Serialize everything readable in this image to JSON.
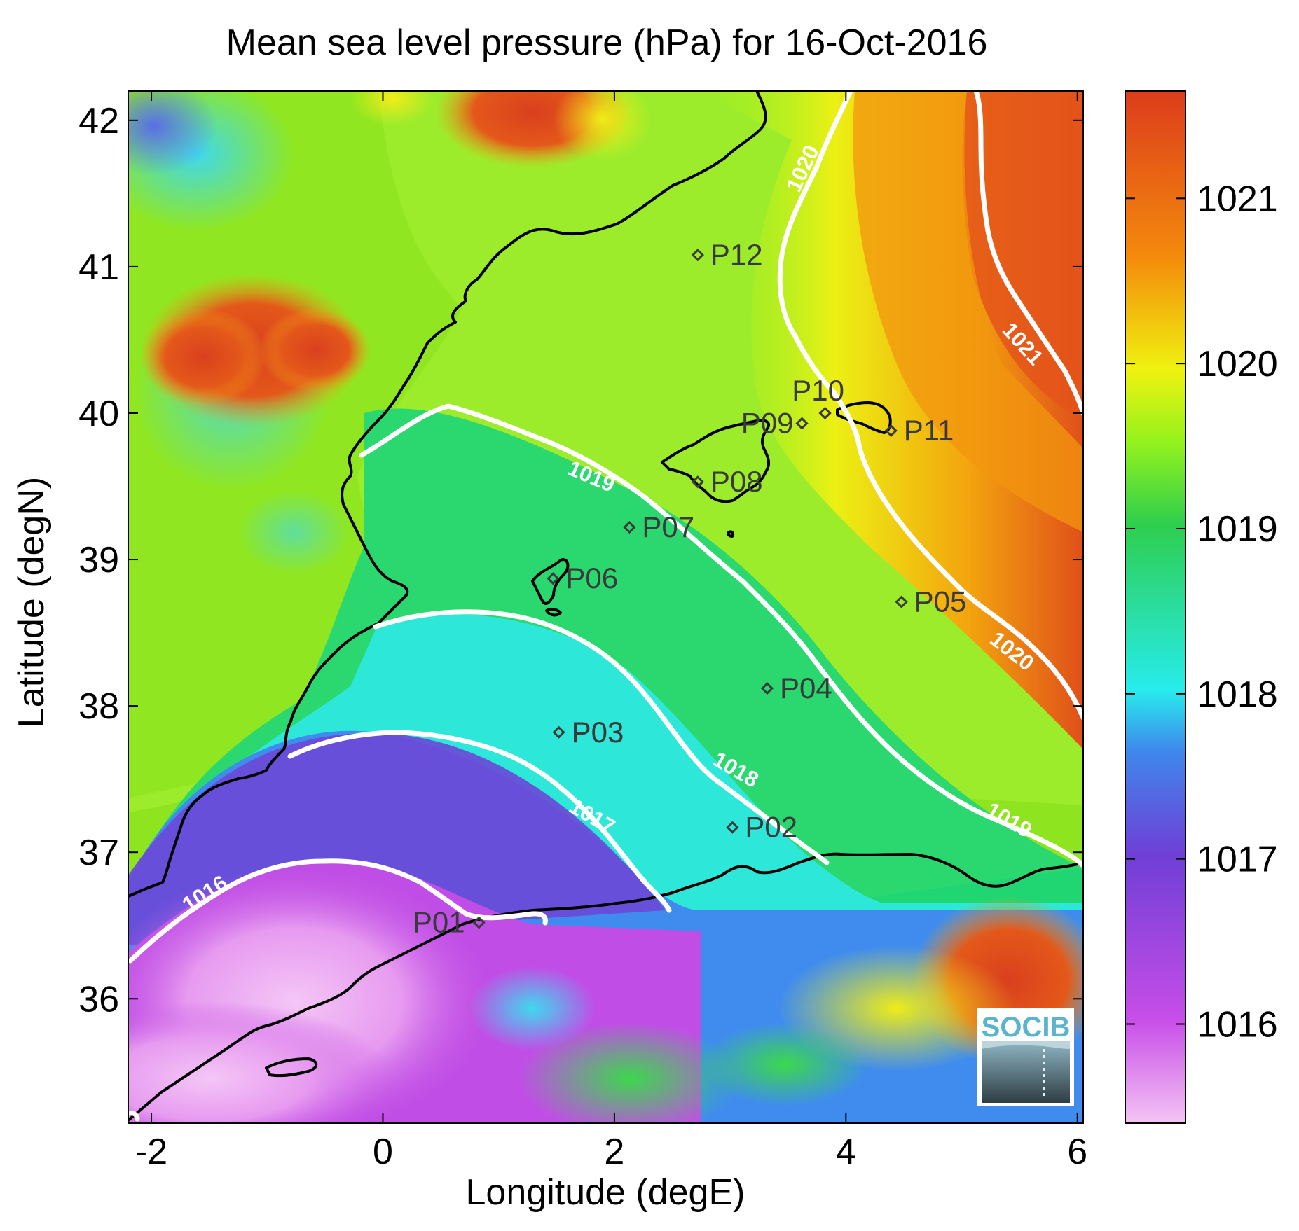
{
  "figure": {
    "title": "Mean sea level pressure (hPa) for 16-Oct-2016",
    "xlabel": "Longitude (degE)",
    "ylabel": "Latitude (degN)",
    "logo_text": "SOCIB"
  },
  "chart_data": {
    "type": "heatmap",
    "title": "Mean sea level pressure (hPa) for 16-Oct-2016",
    "xlabel": "Longitude (degE)",
    "ylabel": "Latitude (degN)",
    "xlim": [
      -2.2,
      6.05
    ],
    "ylim": [
      35.15,
      42.2
    ],
    "xticks": [
      -2,
      0,
      2,
      4,
      6
    ],
    "yticks": [
      36,
      37,
      38,
      39,
      40,
      41,
      42
    ],
    "colorbar": {
      "range": [
        1015.4,
        1021.65
      ],
      "ticks": [
        1016,
        1017,
        1018,
        1019,
        1020,
        1021
      ],
      "colors": [
        "#f4c4f4",
        "#c84ee8",
        "#6f3fd6",
        "#3f87ec",
        "#27ecec",
        "#2ece4e",
        "#94f21c",
        "#f0f210",
        "#f48a0c",
        "#dc3c1c"
      ]
    },
    "contour_labels": [
      "1016",
      "1017",
      "1018",
      "1019",
      "1019",
      "1020",
      "1020",
      "1021"
    ],
    "stations": [
      {
        "name": "P01",
        "lon": 0.83,
        "lat": 36.52
      },
      {
        "name": "P02",
        "lon": 3.02,
        "lat": 37.17
      },
      {
        "name": "P03",
        "lon": 1.52,
        "lat": 37.82
      },
      {
        "name": "P04",
        "lon": 3.32,
        "lat": 38.12
      },
      {
        "name": "P05",
        "lon": 4.48,
        "lat": 38.71
      },
      {
        "name": "P06",
        "lon": 1.47,
        "lat": 38.87
      },
      {
        "name": "P07",
        "lon": 2.13,
        "lat": 39.22
      },
      {
        "name": "P08",
        "lon": 2.72,
        "lat": 39.53
      },
      {
        "name": "P09",
        "lon": 3.62,
        "lat": 39.93
      },
      {
        "name": "P10",
        "lon": 3.82,
        "lat": 40.0
      },
      {
        "name": "P11",
        "lon": 4.39,
        "lat": 39.88
      },
      {
        "name": "P12",
        "lon": 2.72,
        "lat": 41.08
      }
    ]
  }
}
